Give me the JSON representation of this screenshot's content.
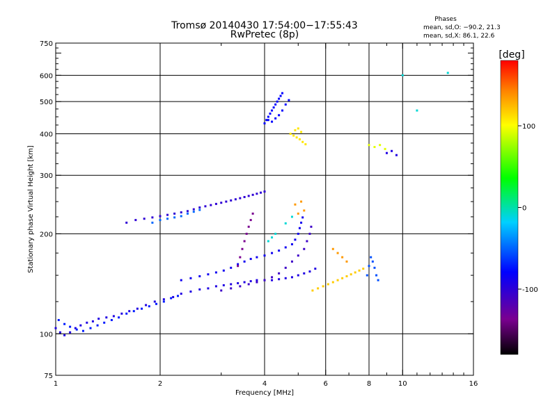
{
  "chart_data": {
    "type": "scatter",
    "title": "Tromsø 20140430 17:54:00−17:55:43",
    "subtitle": "RwPretec (8p)",
    "stats": {
      "heading": "Phases",
      "o_line": "mean, sd,O: −90.2, 21.3",
      "x_line": "mean, sd,X:  86.1, 22.6"
    },
    "xlabel": "Frequency [MHz]",
    "ylabel": "Stationary phase Virtual Height [km]",
    "x_scale": "log",
    "y_scale": "log",
    "xlim": [
      1,
      16
    ],
    "ylim": [
      75,
      750
    ],
    "x_ticks": [
      1,
      2,
      4,
      6,
      8,
      10,
      16
    ],
    "y_ticks": [
      75,
      100,
      200,
      300,
      400,
      500,
      600,
      750
    ],
    "x_gridlines": [
      2,
      4,
      6,
      8,
      10
    ],
    "y_gridlines": [
      100,
      200,
      300,
      400,
      500,
      600
    ],
    "colorbar": {
      "label": "[deg]",
      "range": [
        -180,
        180
      ],
      "ticks": [
        100,
        0,
        -100
      ],
      "colormap": "rainbow: black at -180, purple, blue, cyan, green, yellow, red at 180"
    },
    "series": [
      {
        "phase": -110,
        "points": [
          [
            1.0,
            104
          ],
          [
            1.03,
            101
          ],
          [
            1.06,
            99
          ],
          [
            1.1,
            101
          ],
          [
            1.14,
            104
          ],
          [
            1.18,
            106
          ],
          [
            1.23,
            108
          ],
          [
            1.28,
            109
          ],
          [
            1.33,
            111
          ],
          [
            1.4,
            112
          ],
          [
            1.47,
            113
          ],
          [
            1.55,
            115
          ],
          [
            1.63,
            117
          ],
          [
            1.72,
            119
          ],
          [
            1.82,
            122
          ],
          [
            1.93,
            125
          ],
          [
            2.05,
            127
          ],
          [
            2.18,
            129
          ],
          [
            2.3,
            132
          ],
          [
            2.45,
            134
          ],
          [
            2.6,
            136
          ],
          [
            2.75,
            137
          ],
          [
            2.9,
            139
          ],
          [
            3.05,
            140
          ],
          [
            3.2,
            141
          ],
          [
            3.35,
            142
          ],
          [
            3.5,
            143
          ],
          [
            3.65,
            144
          ],
          [
            3.8,
            145
          ],
          [
            4.0,
            145
          ],
          [
            4.2,
            145
          ],
          [
            4.4,
            146
          ],
          [
            4.6,
            147
          ],
          [
            4.8,
            148
          ],
          [
            5.0,
            150
          ],
          [
            5.2,
            152
          ],
          [
            5.4,
            154
          ],
          [
            5.6,
            157
          ]
        ]
      },
      {
        "phase": -95,
        "points": [
          [
            1.02,
            110
          ],
          [
            1.06,
            107
          ],
          [
            1.1,
            105
          ],
          [
            1.15,
            103
          ],
          [
            1.2,
            102
          ],
          [
            1.26,
            104
          ],
          [
            1.32,
            106
          ],
          [
            1.38,
            108
          ],
          [
            1.45,
            110
          ],
          [
            1.52,
            112
          ],
          [
            1.6,
            115
          ],
          [
            1.68,
            117
          ],
          [
            1.77,
            119
          ],
          [
            1.86,
            121
          ],
          [
            1.95,
            123
          ],
          [
            2.05,
            125
          ],
          [
            2.15,
            128
          ],
          [
            2.25,
            130
          ]
        ]
      },
      {
        "phase": -115,
        "points": [
          [
            1.6,
            216
          ],
          [
            1.7,
            220
          ],
          [
            1.8,
            222
          ],
          [
            1.9,
            224
          ],
          [
            2.0,
            226
          ],
          [
            2.1,
            228
          ],
          [
            2.2,
            230
          ],
          [
            2.3,
            232
          ],
          [
            2.4,
            234
          ],
          [
            2.5,
            237
          ],
          [
            2.6,
            240
          ],
          [
            2.7,
            242
          ],
          [
            2.8,
            244
          ],
          [
            2.9,
            246
          ],
          [
            3.0,
            248
          ],
          [
            3.1,
            250
          ],
          [
            3.2,
            252
          ],
          [
            3.3,
            254
          ],
          [
            3.4,
            256
          ],
          [
            3.5,
            258
          ],
          [
            3.6,
            260
          ],
          [
            3.7,
            262
          ],
          [
            3.8,
            264
          ],
          [
            3.9,
            266
          ],
          [
            4.0,
            268
          ]
        ]
      },
      {
        "phase": -80,
        "points": [
          [
            1.9,
            216
          ],
          [
            2.0,
            220
          ],
          [
            2.1,
            222
          ],
          [
            2.2,
            224
          ],
          [
            2.3,
            226
          ],
          [
            2.4,
            230
          ],
          [
            2.5,
            233
          ],
          [
            2.6,
            236
          ]
        ]
      },
      {
        "phase": -105,
        "points": [
          [
            2.3,
            145
          ],
          [
            2.45,
            147
          ],
          [
            2.6,
            149
          ],
          [
            2.75,
            151
          ],
          [
            2.9,
            153
          ],
          [
            3.05,
            155
          ],
          [
            3.2,
            158
          ],
          [
            3.35,
            162
          ],
          [
            3.5,
            165
          ],
          [
            3.65,
            168
          ],
          [
            3.8,
            170
          ],
          [
            4.0,
            172
          ],
          [
            4.2,
            175
          ],
          [
            4.4,
            178
          ],
          [
            4.6,
            182
          ],
          [
            4.8,
            186
          ],
          [
            4.9,
            192
          ],
          [
            5.0,
            200
          ],
          [
            5.05,
            208
          ],
          [
            5.1,
            216
          ],
          [
            5.15,
            224
          ]
        ]
      },
      {
        "phase": -120,
        "points": [
          [
            3.0,
            135
          ],
          [
            3.2,
            137
          ],
          [
            3.4,
            139
          ],
          [
            3.6,
            141
          ],
          [
            3.8,
            143
          ],
          [
            4.0,
            145
          ],
          [
            4.2,
            148
          ],
          [
            4.4,
            152
          ],
          [
            4.6,
            158
          ],
          [
            4.8,
            165
          ],
          [
            5.0,
            172
          ],
          [
            5.2,
            180
          ],
          [
            5.3,
            190
          ],
          [
            5.4,
            200
          ],
          [
            5.45,
            210
          ]
        ]
      },
      {
        "phase": -140,
        "points": [
          [
            3.35,
            160
          ],
          [
            3.4,
            170
          ],
          [
            3.45,
            180
          ],
          [
            3.5,
            190
          ],
          [
            3.55,
            200
          ],
          [
            3.6,
            210
          ],
          [
            3.65,
            220
          ],
          [
            3.7,
            230
          ]
        ]
      },
      {
        "phase": -100,
        "points": [
          [
            4.0,
            430
          ],
          [
            4.05,
            440
          ],
          [
            4.1,
            450
          ],
          [
            4.15,
            460
          ],
          [
            4.2,
            470
          ],
          [
            4.25,
            480
          ],
          [
            4.3,
            490
          ],
          [
            4.35,
            500
          ],
          [
            4.4,
            510
          ],
          [
            4.45,
            520
          ],
          [
            4.5,
            530
          ],
          [
            4.1,
            440
          ],
          [
            4.2,
            435
          ],
          [
            4.3,
            445
          ],
          [
            4.4,
            455
          ],
          [
            4.5,
            470
          ],
          [
            4.6,
            490
          ],
          [
            4.7,
            505
          ]
        ]
      },
      {
        "phase": 100,
        "points": [
          [
            4.75,
            400
          ],
          [
            4.85,
            395
          ],
          [
            4.95,
            390
          ],
          [
            5.05,
            385
          ],
          [
            5.15,
            378
          ],
          [
            5.25,
            372
          ],
          [
            4.9,
            410
          ],
          [
            5.0,
            415
          ],
          [
            5.1,
            405
          ]
        ]
      },
      {
        "phase": 110,
        "points": [
          [
            5.5,
            135
          ],
          [
            5.7,
            137
          ],
          [
            5.9,
            139
          ],
          [
            6.1,
            141
          ],
          [
            6.3,
            143
          ],
          [
            6.5,
            145
          ],
          [
            6.7,
            147
          ],
          [
            6.9,
            149
          ],
          [
            7.1,
            151
          ],
          [
            7.3,
            153
          ],
          [
            7.5,
            155
          ],
          [
            7.7,
            157
          ]
        ]
      },
      {
        "phase": -85,
        "points": [
          [
            7.9,
            150
          ],
          [
            8.0,
            160
          ],
          [
            8.1,
            170
          ],
          [
            8.2,
            165
          ],
          [
            8.3,
            158
          ],
          [
            8.4,
            150
          ],
          [
            8.5,
            145
          ]
        ]
      },
      {
        "phase": 80,
        "points": [
          [
            8.0,
            370
          ],
          [
            8.3,
            365
          ],
          [
            8.6,
            370
          ],
          [
            8.9,
            360
          ]
        ]
      },
      {
        "phase": -110,
        "points": [
          [
            9.0,
            350
          ],
          [
            9.3,
            355
          ],
          [
            9.6,
            345
          ]
        ]
      },
      {
        "phase": 130,
        "points": [
          [
            4.9,
            245
          ],
          [
            5.0,
            230
          ],
          [
            5.1,
            250
          ],
          [
            5.2,
            235
          ],
          [
            6.3,
            180
          ],
          [
            6.5,
            175
          ],
          [
            6.7,
            170
          ],
          [
            6.9,
            165
          ]
        ]
      },
      {
        "phase": -50,
        "points": [
          [
            4.1,
            190
          ],
          [
            4.2,
            195
          ],
          [
            4.3,
            200
          ],
          [
            4.6,
            215
          ],
          [
            4.8,
            225
          ],
          [
            10.0,
            600
          ],
          [
            13.5,
            610
          ],
          [
            11.0,
            470
          ]
        ]
      }
    ]
  }
}
